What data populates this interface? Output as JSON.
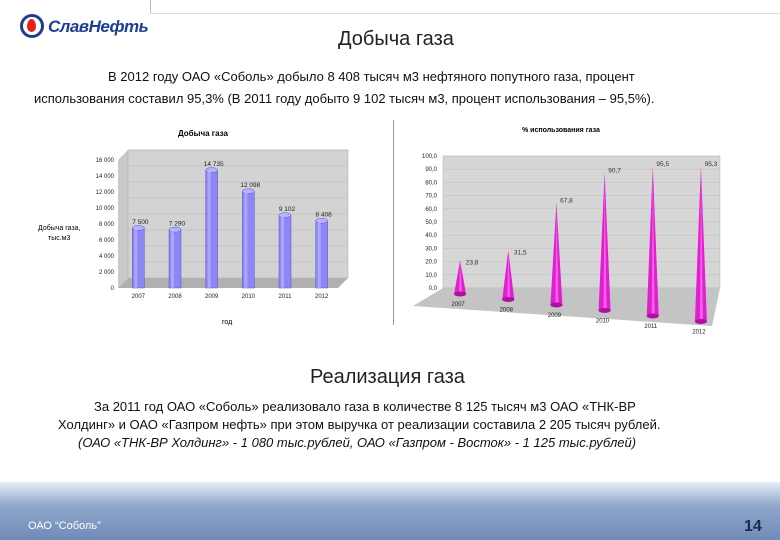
{
  "logo": {
    "text": "СлавНефть",
    "icon": "slavneft-drop-icon"
  },
  "section1": {
    "title": "Добыча газа",
    "paragraph_line1": "В 2012 году ОАО «Соболь» добыло 8 408 тысяч м3 нефтяного попутного газа, процент",
    "paragraph_line2": "использования составил 95,3% (В 2011 году добыто 9 102 тысяч м3, процент использования – 95,5%)."
  },
  "chart_data": [
    {
      "type": "bar",
      "title": "Добыча газа",
      "ylabel": "Добыча газа, тыс.м3",
      "xlabel": "год",
      "categories": [
        "2007",
        "2008",
        "2009",
        "2010",
        "2011",
        "2012"
      ],
      "values": [
        7500,
        7290,
        14735,
        12098,
        9102,
        8408
      ],
      "value_labels": [
        "7 500",
        "7 290",
        "14 735",
        "12 098",
        "9 102",
        "8 408"
      ],
      "ylim": [
        0,
        16000
      ],
      "yticks": [
        "0",
        "2 000",
        "4 000",
        "6 000",
        "8 000",
        "10 000",
        "12 000",
        "14 000",
        "16 000"
      ],
      "color": "#8f86f5"
    },
    {
      "type": "bar",
      "title": "% использования газа",
      "categories": [
        "2007",
        "2008",
        "2009",
        "2010",
        "2011",
        "2012"
      ],
      "values": [
        23.8,
        31.5,
        67.8,
        90.7,
        95.5,
        95.3
      ],
      "value_labels": [
        "23,8",
        "31,5",
        "67,8",
        "90,7",
        "95,5",
        "95,3"
      ],
      "ylim": [
        0,
        100
      ],
      "yticks": [
        "0,0",
        "10,0",
        "20,0",
        "30,0",
        "40,0",
        "50,0",
        "60,0",
        "70,0",
        "80,0",
        "90,0",
        "100,0"
      ],
      "color": "#e020d0"
    }
  ],
  "section2": {
    "title": "Реализация газа",
    "line1": "За 2011 год ОАО «Соболь» реализовало газа в количестве 8 125 тысяч м3 ОАО «ТНК-ВР",
    "line2": "Холдинг» и ОАО «Газпром нефть» при этом выручка от реализации составила 2 205 тысяч рублей.",
    "line3": "(ОАО «ТНК-ВР Холдинг» - 1 080 тыс.рублей, ОАО «Газпром - Восток» - 1 125 тыс.рублей)"
  },
  "footer": {
    "company": "ОАО “Соболь”",
    "page": "14"
  }
}
